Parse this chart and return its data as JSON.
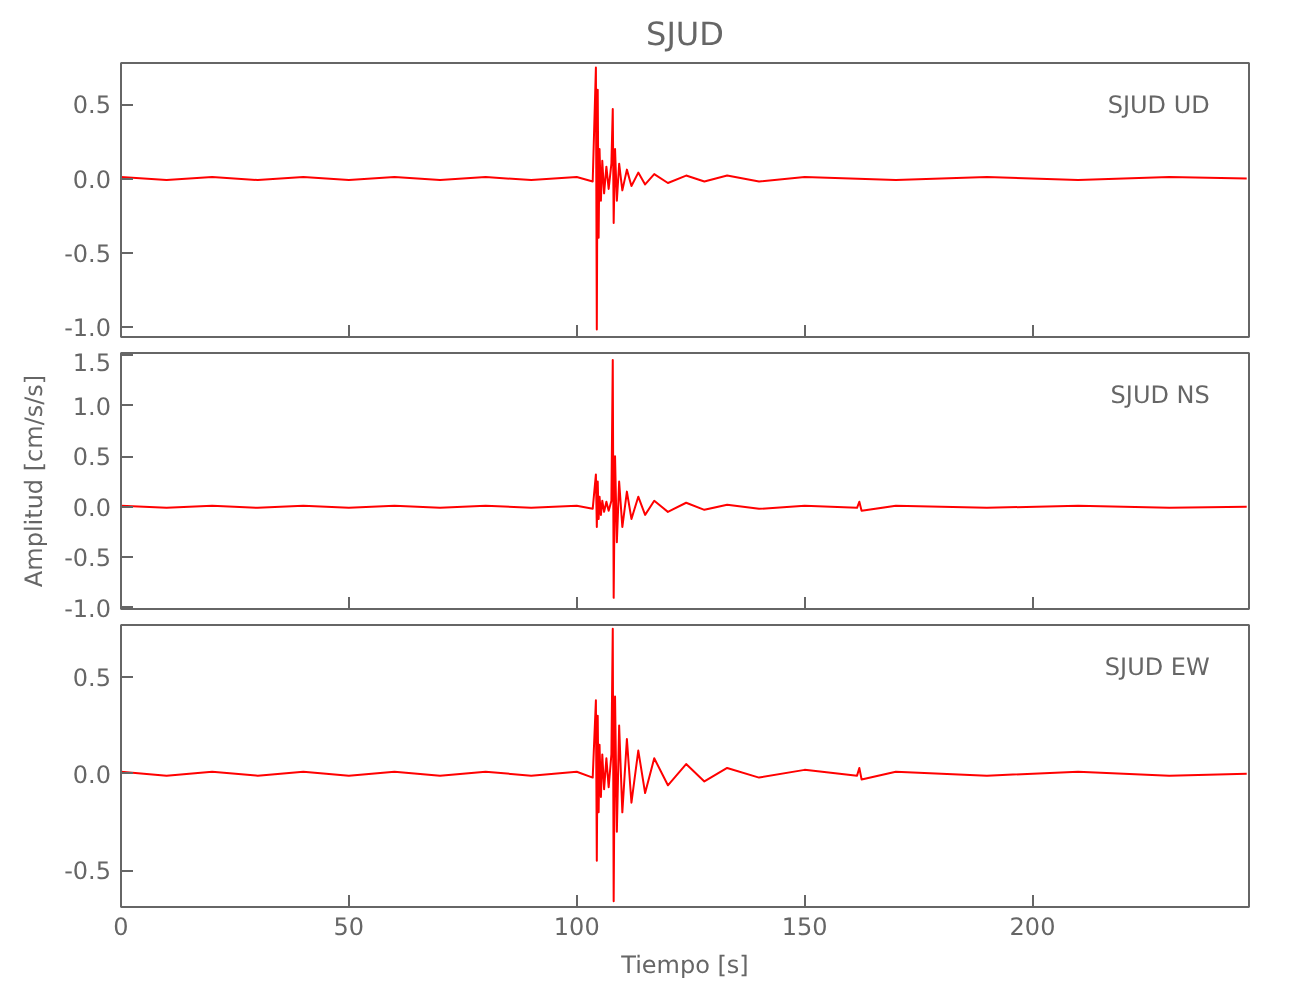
{
  "chart_data": [
    {
      "type": "line",
      "title": "SJUD",
      "annotations": [
        "SJUD   UD"
      ],
      "tick_labels": "y",
      "grid": false,
      "marker": "none",
      "line_style": "solid",
      "x": [
        0,
        10,
        20,
        30,
        40,
        50,
        60,
        70,
        80,
        90,
        100,
        103.5,
        104.2,
        104.4,
        104.6,
        104.8,
        105.0,
        105.3,
        105.6,
        106.0,
        106.5,
        107.0,
        107.6,
        107.9,
        108.1,
        108.4,
        108.8,
        109.3,
        110,
        111,
        112,
        113.5,
        115,
        117,
        120,
        124,
        128,
        133,
        140,
        150,
        170,
        190,
        210,
        230,
        247
      ],
      "series": [
        {
          "color": "#ff0000",
          "values": [
            0.01,
            -0.01,
            0.01,
            -0.01,
            0.01,
            -0.01,
            0.01,
            -0.01,
            0.01,
            -0.01,
            0.01,
            -0.02,
            0.75,
            -1.02,
            0.6,
            -0.4,
            0.2,
            -0.15,
            0.12,
            -0.1,
            0.08,
            -0.07,
            0.1,
            0.47,
            -0.3,
            0.2,
            -0.15,
            0.1,
            -0.08,
            0.06,
            -0.05,
            0.04,
            -0.04,
            0.03,
            -0.03,
            0.02,
            -0.02,
            0.02,
            -0.02,
            0.01,
            -0.01,
            0.01,
            -0.01,
            0.01,
            0
          ]
        }
      ],
      "xlim": [
        0,
        247.5
      ],
      "xticks": [
        0,
        50,
        100,
        150,
        200
      ],
      "ylim": [
        -1.07,
        0.78
      ],
      "yticks": [
        {
          "value": -1.0,
          "label": "-1.0"
        },
        {
          "value": -0.5,
          "label": "-0.5"
        },
        {
          "value": 0,
          "label": "0.0"
        },
        {
          "value": 0.5,
          "label": "0.5"
        }
      ]
    },
    {
      "type": "line",
      "ylabel": "Amplitud [cm/s/s]",
      "annotations": [
        "SJUD   NS"
      ],
      "tick_labels": "y",
      "grid": false,
      "marker": "none",
      "line_style": "solid",
      "x": [
        0,
        10,
        20,
        30,
        40,
        50,
        60,
        70,
        80,
        90,
        100,
        103.5,
        104.2,
        104.4,
        104.6,
        104.8,
        105.0,
        105.3,
        105.6,
        106.0,
        106.5,
        107.0,
        107.6,
        107.9,
        108.1,
        108.4,
        108.8,
        109.3,
        110,
        111,
        112,
        113.5,
        115,
        117,
        120,
        124,
        128,
        133,
        140,
        150,
        161.5,
        162,
        162.5,
        170,
        190,
        210,
        230,
        247
      ],
      "series": [
        {
          "color": "#ff0000",
          "values": [
            0.01,
            -0.01,
            0.01,
            -0.01,
            0.01,
            -0.01,
            0.01,
            -0.01,
            0.01,
            -0.01,
            0.01,
            -0.02,
            0.32,
            -0.2,
            0.25,
            -0.12,
            0.1,
            -0.08,
            0.06,
            -0.05,
            0.05,
            -0.04,
            0.06,
            1.45,
            -0.9,
            0.5,
            -0.35,
            0.25,
            -0.2,
            0.15,
            -0.12,
            0.1,
            -0.08,
            0.06,
            -0.05,
            0.04,
            -0.03,
            0.02,
            -0.02,
            0.01,
            -0.01,
            0.05,
            -0.04,
            0.01,
            -0.01,
            0.01,
            -0.01,
            0
          ]
        }
      ],
      "xlim": [
        0,
        247.5
      ],
      "xticks": [
        0,
        50,
        100,
        150,
        200
      ],
      "ylim": [
        -1.01,
        1.52
      ],
      "yticks": [
        {
          "value": -1.0,
          "label": "-1.0"
        },
        {
          "value": -0.5,
          "label": "-0.5"
        },
        {
          "value": 0,
          "label": "0.0"
        },
        {
          "value": 0.5,
          "label": "0.5"
        },
        {
          "value": 1.0,
          "label": "1.0"
        },
        {
          "value": 1.5,
          "label": "1.5"
        }
      ]
    },
    {
      "type": "line",
      "xlabel": "Tiempo [s]",
      "annotations": [
        "SJUD   EW"
      ],
      "grid": false,
      "marker": "none",
      "line_style": "solid",
      "x": [
        0,
        10,
        20,
        30,
        40,
        50,
        60,
        70,
        80,
        90,
        100,
        103.5,
        104.2,
        104.4,
        104.6,
        104.8,
        105.0,
        105.3,
        105.6,
        106.0,
        106.5,
        107.0,
        107.6,
        107.9,
        108.1,
        108.4,
        108.8,
        109.3,
        110,
        111,
        112,
        113.5,
        115,
        117,
        120,
        124,
        128,
        133,
        140,
        150,
        161.5,
        162,
        162.5,
        170,
        190,
        210,
        230,
        247
      ],
      "series": [
        {
          "color": "#ff0000",
          "values": [
            0.01,
            -0.01,
            0.01,
            -0.01,
            0.01,
            -0.01,
            0.01,
            -0.01,
            0.01,
            -0.01,
            0.01,
            -0.02,
            0.38,
            -0.45,
            0.3,
            -0.2,
            0.15,
            -0.12,
            0.1,
            -0.08,
            0.08,
            -0.07,
            0.1,
            0.75,
            -0.66,
            0.4,
            -0.3,
            0.25,
            -0.2,
            0.18,
            -0.15,
            0.12,
            -0.1,
            0.08,
            -0.06,
            0.05,
            -0.04,
            0.03,
            -0.02,
            0.02,
            -0.01,
            0.03,
            -0.03,
            0.01,
            -0.01,
            0.01,
            -0.01,
            0
          ]
        }
      ],
      "xlim": [
        0,
        247.5
      ],
      "xticks": [
        0,
        50,
        100,
        150,
        200
      ],
      "ylim": [
        -0.69,
        0.77
      ],
      "yticks": [
        {
          "value": -0.5,
          "label": "-0.5"
        },
        {
          "value": 0,
          "label": "0.0"
        },
        {
          "value": 0.5,
          "label": "0.5"
        }
      ]
    }
  ]
}
